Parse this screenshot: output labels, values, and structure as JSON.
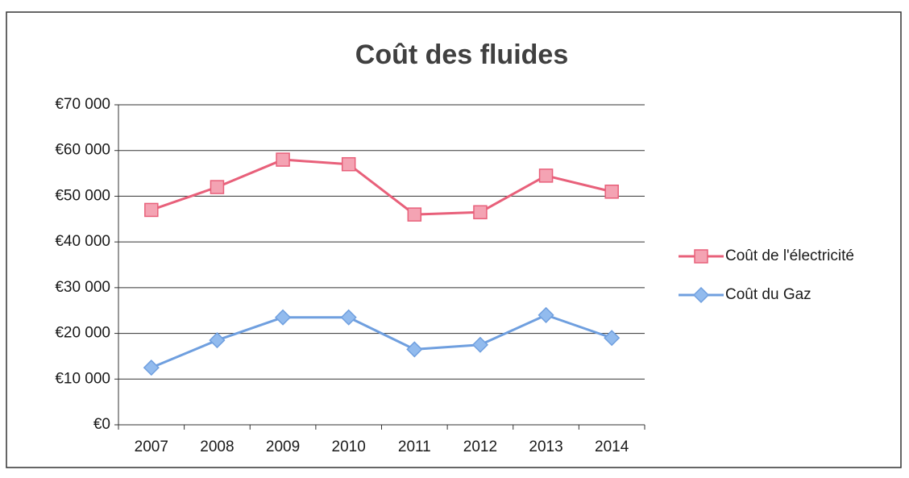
{
  "chart_data": {
    "type": "line",
    "title": "Coût des fluides",
    "categories": [
      "2007",
      "2008",
      "2009",
      "2010",
      "2011",
      "2012",
      "2013",
      "2014"
    ],
    "series": [
      {
        "name": "Coût de l'électricité",
        "color": "#e8607a",
        "marker_color": "#f4a3b3",
        "marker": "square",
        "values": [
          47000,
          52000,
          58000,
          57000,
          46000,
          46500,
          54500,
          51000
        ]
      },
      {
        "name": "Coût du Gaz",
        "color": "#6f9fdf",
        "marker_color": "#92bbee",
        "marker": "diamond",
        "values": [
          12500,
          18500,
          23500,
          23500,
          16500,
          17500,
          24000,
          19000
        ]
      }
    ],
    "ylim": [
      0,
      70000
    ],
    "yticks": [
      {
        "value": 0,
        "label": "€0"
      },
      {
        "value": 10000,
        "label": "€10 000"
      },
      {
        "value": 20000,
        "label": "€20 000"
      },
      {
        "value": 30000,
        "label": "€30 000"
      },
      {
        "value": 40000,
        "label": "€40 000"
      },
      {
        "value": 50000,
        "label": "€50 000"
      },
      {
        "value": 60000,
        "label": "€60 000"
      },
      {
        "value": 70000,
        "label": "€70 000"
      }
    ],
    "grid": true,
    "legend": "right"
  }
}
